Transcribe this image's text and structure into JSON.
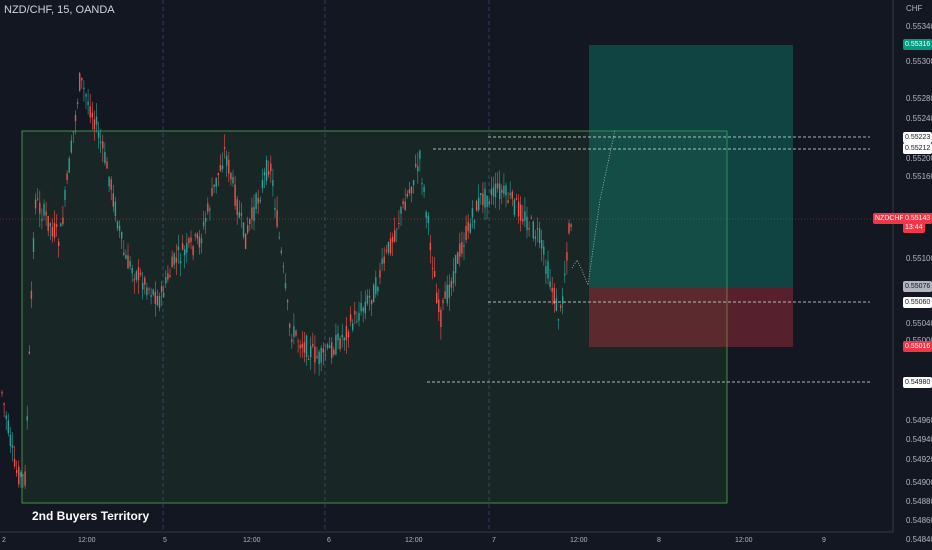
{
  "header": {
    "symbol_title": "NZD/CHF, 15, OANDA",
    "currency": "CHF"
  },
  "annotation": {
    "territory_text": "2nd Buyers Territory"
  },
  "y_axis": {
    "ticks": [
      "0.55340",
      "0.55300",
      "0.55280",
      "0.55240",
      "0.55200",
      "0.55160",
      "0.55120",
      "0.55100",
      "0.55040",
      "0.55000",
      "0.54960",
      "0.54940",
      "0.54920",
      "0.54900",
      "0.54880",
      "0.54860",
      "0.54840"
    ]
  },
  "price_tags": [
    {
      "label": "0.55316",
      "bg": "#089981",
      "fg": "#ffffff"
    },
    {
      "label": "0.55223",
      "bg": "#ffffff",
      "fg": "#131722"
    },
    {
      "label": "0.55212",
      "bg": "#ffffff",
      "fg": "#131722"
    },
    {
      "label": "NZDCHF",
      "bg": "#f23645",
      "fg": "#ffffff"
    },
    {
      "label": "0.55143",
      "bg": "#f23645",
      "fg": "#ffffff"
    },
    {
      "label": "13:44",
      "bg": "#f23645",
      "fg": "#ffffff"
    },
    {
      "label": "0.55076",
      "bg": "#b2b5be",
      "fg": "#131722"
    },
    {
      "label": "0.55060",
      "bg": "#ffffff",
      "fg": "#131722"
    },
    {
      "label": "0.55016",
      "bg": "#f23645",
      "fg": "#ffffff"
    },
    {
      "label": "0.54980",
      "bg": "#ffffff",
      "fg": "#131722"
    }
  ],
  "x_axis": {
    "ticks": [
      "2",
      "12:00",
      "5",
      "12:00",
      "6",
      "12:00",
      "7",
      "12:00",
      "8",
      "12:00",
      "9"
    ]
  },
  "colors": {
    "up": "#26a69a",
    "down": "#ef5350",
    "target": "#089981",
    "stop": "#f23645"
  }
}
